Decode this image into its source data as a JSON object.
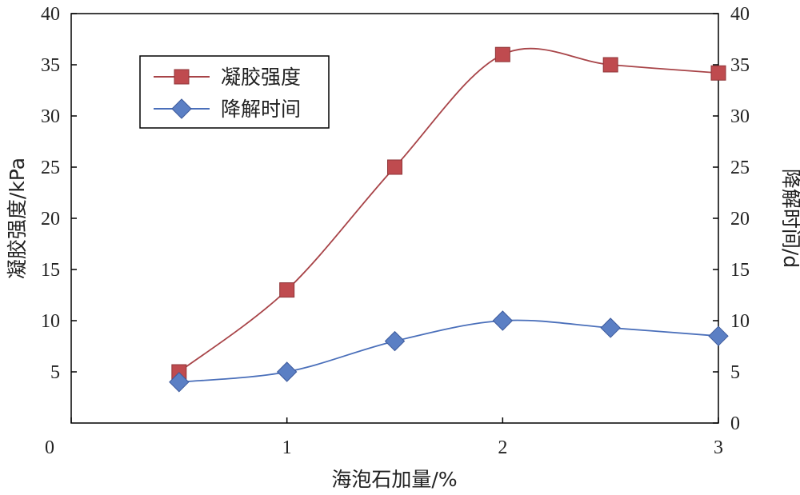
{
  "chart_data": {
    "type": "line",
    "xlabel": "海泡石加量/%",
    "ylabel_left": "凝胶强度/kPa",
    "ylabel_right": "降解时间/d",
    "xlim": [
      0,
      3
    ],
    "ylim_left": [
      0,
      40
    ],
    "ylim_right": [
      0,
      40
    ],
    "x_ticks": [
      "0",
      "1",
      "2",
      "3"
    ],
    "y_ticks_left": [
      "5",
      "10",
      "15",
      "20",
      "25",
      "30",
      "35",
      "40"
    ],
    "y_ticks_right": [
      "0",
      "5",
      "10",
      "15",
      "20",
      "25",
      "30",
      "35",
      "40"
    ],
    "x_tick_values": [
      0,
      1,
      2,
      3
    ],
    "y_tick_values_left": [
      5,
      10,
      15,
      20,
      25,
      30,
      35,
      40
    ],
    "y_tick_values_right": [
      0,
      5,
      10,
      15,
      20,
      25,
      30,
      35,
      40
    ],
    "grid": false,
    "legend_position": "top-left",
    "series": [
      {
        "name": "凝胶强度",
        "axis": "left",
        "marker": "square",
        "color": "#a84448",
        "markerColor": "#bf4b4f",
        "x": [
          0.5,
          1.0,
          1.5,
          2.0,
          2.5,
          3.0
        ],
        "values": [
          5,
          13,
          25,
          36,
          35,
          34.2
        ]
      },
      {
        "name": "降解时间",
        "axis": "right",
        "marker": "diamond",
        "color": "#4a6fba",
        "markerColor": "#5b7fc4",
        "x": [
          0.5,
          1.0,
          1.5,
          2.0,
          2.5,
          3.0
        ],
        "values": [
          4,
          5,
          8,
          10,
          9.3,
          8.5
        ]
      }
    ]
  }
}
